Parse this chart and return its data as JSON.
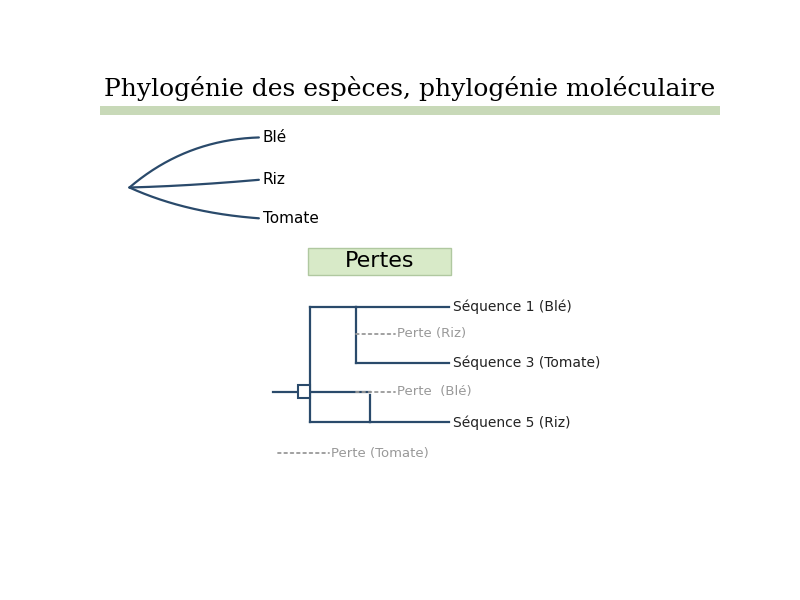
{
  "title": "Phylogénie des espèces, phylogénie moléculaire",
  "title_fontsize": 18,
  "title_font": "serif",
  "header_bar_color": "#c8d9b8",
  "bg_color": "#ffffff",
  "tree_color": "#2a4a6b",
  "tree_linewidth": 1.6,
  "label_color": "#000000",
  "perte_color": "#999999",
  "pertes_box_color": "#d8eac8",
  "pertes_box_edge": "#b0c8a0",
  "pertes_label": "Pertes",
  "pertes_fontsize": 16,
  "label_fontsize": 11,
  "mol_fontsize": 10,
  "species_labels": [
    "Blé",
    "Riz",
    "Tomate"
  ],
  "mol_labels": [
    {
      "text": "Séquence 1 (Blé)",
      "type": "seq"
    },
    {
      "text": "Perte (Riz)",
      "type": "perte"
    },
    {
      "text": "Séquence 3 (Tomate)",
      "type": "seq"
    },
    {
      "text": "Perte  (Blé)",
      "type": "perte"
    },
    {
      "text": "Séquence 5 (Riz)",
      "type": "seq"
    },
    {
      "text": "Perte (Tomate)",
      "type": "perte"
    }
  ]
}
